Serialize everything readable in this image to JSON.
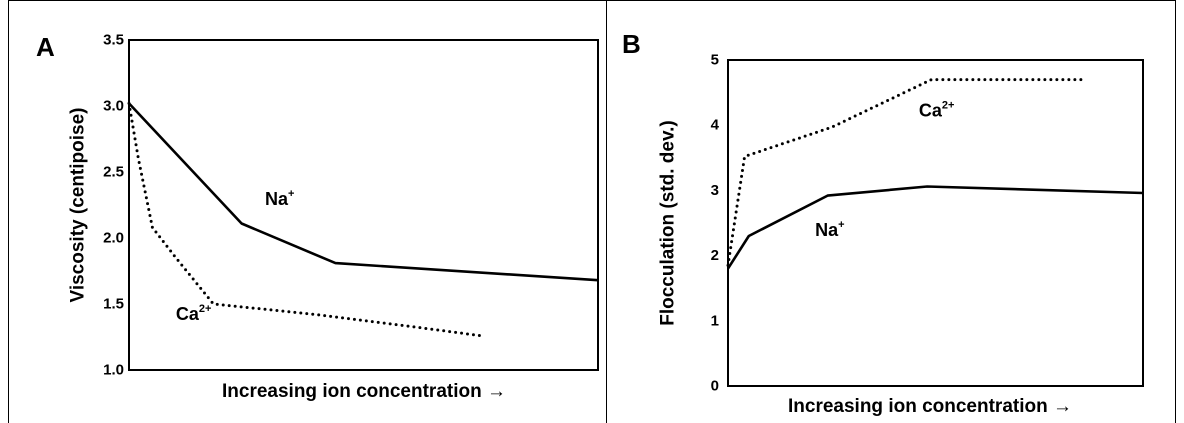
{
  "chart_data": [
    {
      "type": "line",
      "panel_label": "A",
      "xlabel": "Increasing ion concentration →",
      "ylabel": "Viscosity  (centipoise)",
      "ylim": [
        1.0,
        3.5
      ],
      "xlim": [
        0,
        100
      ],
      "yticks": [
        "1.0",
        "1.5",
        "2.0",
        "2.5",
        "3.0",
        "3.5"
      ],
      "grid": false,
      "series": [
        {
          "base": "Na",
          "sup": "+",
          "style": "solid",
          "label_pos": {
            "x": 29,
            "y": 2.25
          },
          "points": [
            [
              0,
              3.02
            ],
            [
              24,
              2.11
            ],
            [
              44,
              1.81
            ],
            [
              100,
              1.68
            ]
          ]
        },
        {
          "base": "Ca",
          "sup": "2+",
          "style": "dotted",
          "label_pos": {
            "x": 10,
            "y": 1.38
          },
          "points": [
            [
              0,
              3.02
            ],
            [
              2,
              2.6
            ],
            [
              5,
              2.08
            ],
            [
              10,
              1.85
            ],
            [
              18,
              1.5
            ],
            [
              40,
              1.42
            ],
            [
              60,
              1.33
            ],
            [
              75,
              1.26
            ]
          ]
        }
      ]
    },
    {
      "type": "line",
      "panel_label": "B",
      "xlabel": "Increasing ion concentration →",
      "ylabel": "Flocculation  (std. dev.)",
      "ylim": [
        0,
        5
      ],
      "xlim": [
        0,
        100
      ],
      "yticks": [
        "0",
        "1",
        "2",
        "3",
        "4",
        "5"
      ],
      "grid": false,
      "series": [
        {
          "base": "Na",
          "sup": "+",
          "style": "solid",
          "label_pos": {
            "x": 21,
            "y": 2.3
          },
          "points": [
            [
              0,
              1.8
            ],
            [
              5,
              2.3
            ],
            [
              24,
              2.92
            ],
            [
              48,
              3.06
            ],
            [
              100,
              2.96
            ]
          ]
        },
        {
          "base": "Ca",
          "sup": "2+",
          "style": "dotted",
          "label_pos": {
            "x": 46,
            "y": 4.13
          },
          "points": [
            [
              0,
              1.85
            ],
            [
              4,
              3.52
            ],
            [
              25,
              3.97
            ],
            [
              49,
              4.7
            ],
            [
              86,
              4.7
            ]
          ]
        }
      ]
    }
  ]
}
